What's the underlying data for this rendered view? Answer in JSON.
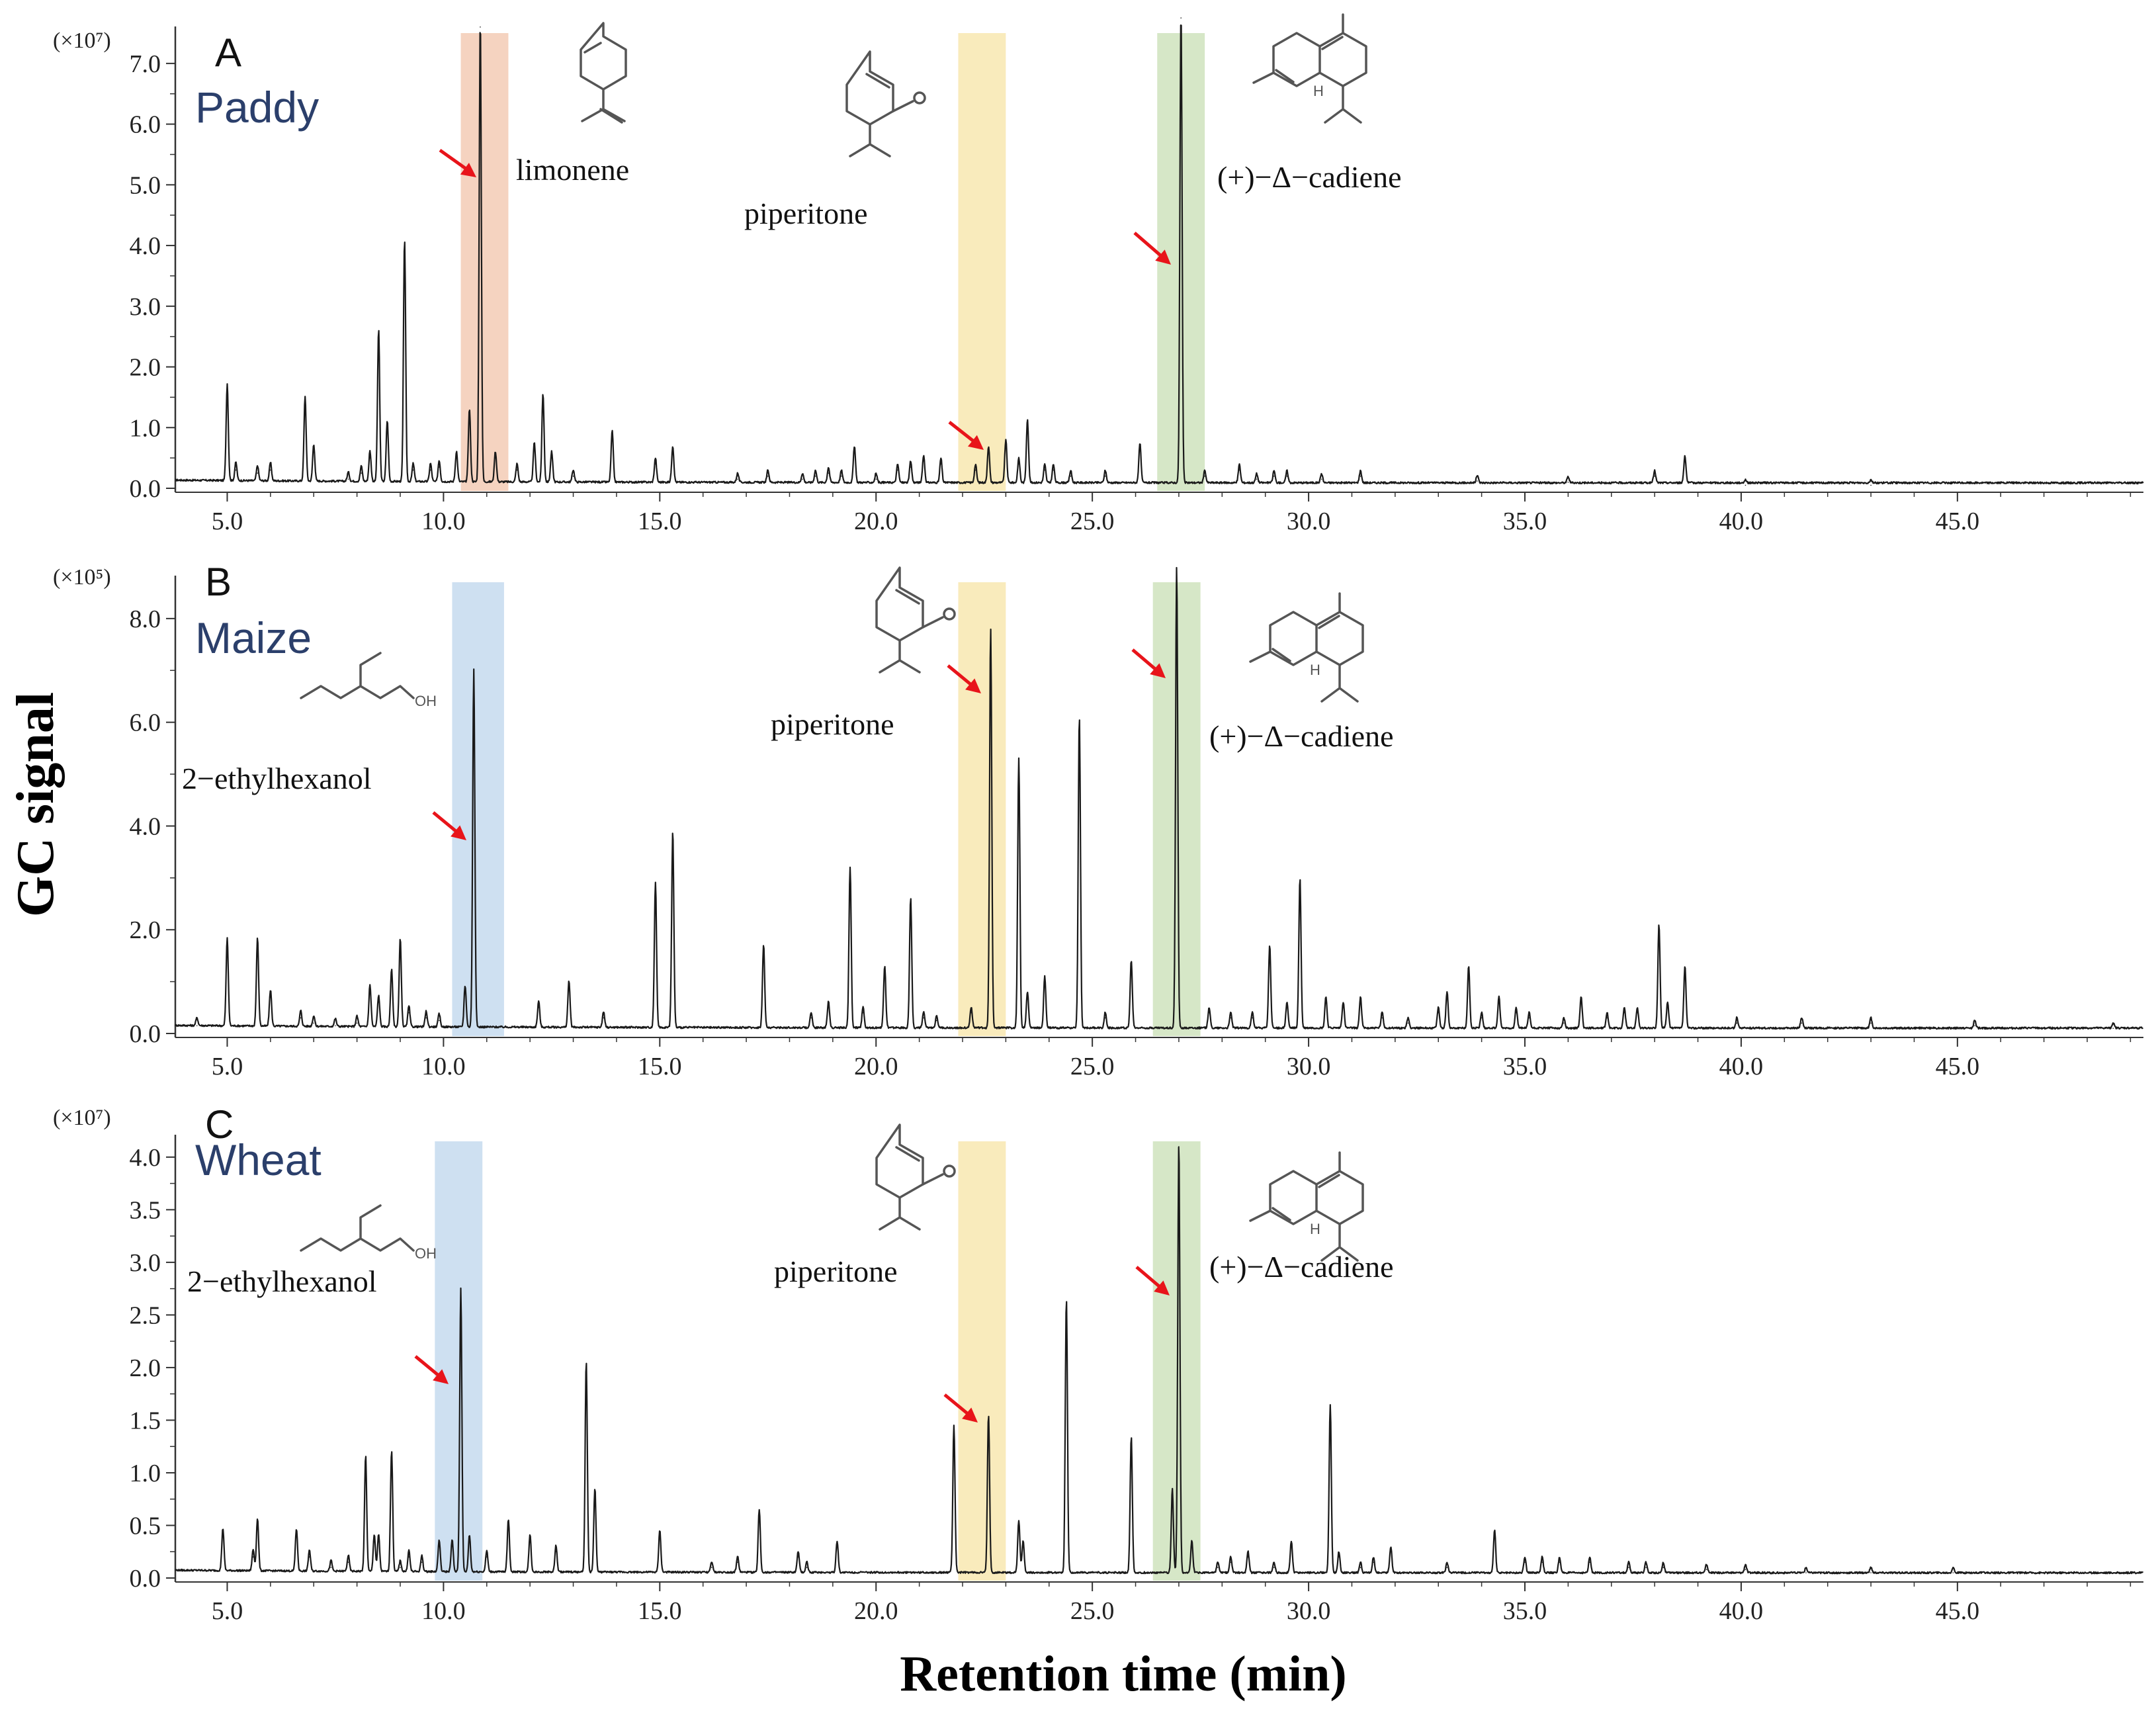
{
  "chart_data": {
    "type": "line",
    "xlabel": "Retention time (min)",
    "ylabel": "GC signal",
    "xlim": [
      3.8,
      49.3
    ],
    "x_ticks": [
      "5.0",
      "10.0",
      "15.0",
      "20.0",
      "25.0",
      "30.0",
      "35.0",
      "40.0",
      "45.0"
    ],
    "panels": [
      {
        "id": "A",
        "letter": "A",
        "crop": "Paddy",
        "multiplier": "(×10⁷)",
        "ylim": [
          0,
          7.5
        ],
        "y_ticks": [
          "0.0",
          "1.0",
          "2.0",
          "3.0",
          "4.0",
          "5.0",
          "6.0",
          "7.0"
        ],
        "highlights": [
          {
            "x0": 10.4,
            "x1": 11.5,
            "color": "#f3cbb5",
            "compound": "limonene"
          },
          {
            "x0": 21.9,
            "x1": 23.0,
            "color": "#f8e7b0",
            "compound": "piperitone"
          },
          {
            "x0": 26.5,
            "x1": 27.6,
            "color": "#cfe3bd",
            "compound": "(+)−Δ−cadiene"
          }
        ],
        "labels": [
          {
            "text": "limonene"
          },
          {
            "text": "piperitone"
          },
          {
            "text": "(+)−Δ−cadiene"
          }
        ],
        "peaks": [
          [
            5.0,
            1.6
          ],
          [
            5.2,
            0.3
          ],
          [
            5.7,
            0.25
          ],
          [
            6.0,
            0.3
          ],
          [
            6.8,
            1.4
          ],
          [
            7.0,
            0.6
          ],
          [
            7.8,
            0.15
          ],
          [
            8.1,
            0.25
          ],
          [
            8.3,
            0.5
          ],
          [
            8.5,
            2.5
          ],
          [
            8.7,
            1.0
          ],
          [
            9.1,
            4.0
          ],
          [
            9.3,
            0.3
          ],
          [
            9.7,
            0.3
          ],
          [
            9.9,
            0.35
          ],
          [
            10.3,
            0.5
          ],
          [
            10.6,
            1.2
          ],
          [
            10.85,
            7.6
          ],
          [
            11.2,
            0.5
          ],
          [
            11.7,
            0.3
          ],
          [
            12.1,
            0.65
          ],
          [
            12.3,
            1.45
          ],
          [
            12.5,
            0.5
          ],
          [
            13.0,
            0.2
          ],
          [
            13.9,
            0.85
          ],
          [
            14.9,
            0.4
          ],
          [
            15.3,
            0.6
          ],
          [
            16.8,
            0.15
          ],
          [
            17.5,
            0.2
          ],
          [
            18.3,
            0.15
          ],
          [
            18.6,
            0.2
          ],
          [
            18.9,
            0.25
          ],
          [
            19.2,
            0.2
          ],
          [
            19.5,
            0.6
          ],
          [
            20.0,
            0.15
          ],
          [
            20.5,
            0.3
          ],
          [
            20.8,
            0.35
          ],
          [
            21.1,
            0.45
          ],
          [
            21.5,
            0.4
          ],
          [
            22.3,
            0.3
          ],
          [
            22.6,
            0.6
          ],
          [
            23.0,
            0.7
          ],
          [
            23.3,
            0.4
          ],
          [
            23.5,
            1.05
          ],
          [
            23.9,
            0.3
          ],
          [
            24.1,
            0.3
          ],
          [
            24.5,
            0.2
          ],
          [
            25.3,
            0.2
          ],
          [
            26.1,
            0.65
          ],
          [
            27.05,
            7.75
          ],
          [
            27.6,
            0.2
          ],
          [
            28.4,
            0.3
          ],
          [
            28.8,
            0.15
          ],
          [
            29.2,
            0.2
          ],
          [
            29.5,
            0.2
          ],
          [
            30.3,
            0.15
          ],
          [
            31.2,
            0.2
          ],
          [
            33.9,
            0.12
          ],
          [
            36.0,
            0.1
          ],
          [
            38.0,
            0.2
          ],
          [
            38.7,
            0.45
          ],
          [
            40.1,
            0.05
          ],
          [
            43.0,
            0.05
          ]
        ]
      },
      {
        "id": "B",
        "letter": "B",
        "crop": "Maize",
        "multiplier": "(×10⁵)",
        "ylim": [
          0,
          8.7
        ],
        "y_ticks": [
          "0.0",
          "2.0",
          "4.0",
          "6.0",
          "8.0"
        ],
        "highlights": [
          {
            "x0": 10.2,
            "x1": 11.4,
            "color": "#c6dbef",
            "compound": "2−ethylhexanol"
          },
          {
            "x0": 21.9,
            "x1": 23.0,
            "color": "#f8e7b0",
            "compound": "piperitone"
          },
          {
            "x0": 26.4,
            "x1": 27.5,
            "color": "#cfe3bd",
            "compound": "(+)−Δ−cadiene"
          }
        ],
        "labels": [
          {
            "text": "2−ethylhexanol"
          },
          {
            "text": "piperitone"
          },
          {
            "text": "(+)−Δ−cadiene"
          }
        ],
        "peaks": [
          [
            4.3,
            0.15
          ],
          [
            5.0,
            1.7
          ],
          [
            5.7,
            1.7
          ],
          [
            6.0,
            0.7
          ],
          [
            6.7,
            0.3
          ],
          [
            7.0,
            0.2
          ],
          [
            7.5,
            0.15
          ],
          [
            8.0,
            0.2
          ],
          [
            8.3,
            0.8
          ],
          [
            8.5,
            0.6
          ],
          [
            8.8,
            1.1
          ],
          [
            9.0,
            1.7
          ],
          [
            9.2,
            0.4
          ],
          [
            9.6,
            0.3
          ],
          [
            9.9,
            0.25
          ],
          [
            10.5,
            0.8
          ],
          [
            10.7,
            6.9
          ],
          [
            12.2,
            0.5
          ],
          [
            12.9,
            0.9
          ],
          [
            13.7,
            0.3
          ],
          [
            14.9,
            2.8
          ],
          [
            15.3,
            3.8
          ],
          [
            17.4,
            1.6
          ],
          [
            18.5,
            0.3
          ],
          [
            18.9,
            0.5
          ],
          [
            19.4,
            3.1
          ],
          [
            19.7,
            0.4
          ],
          [
            20.2,
            1.2
          ],
          [
            20.8,
            2.5
          ],
          [
            21.1,
            0.3
          ],
          [
            21.4,
            0.25
          ],
          [
            22.2,
            0.4
          ],
          [
            22.65,
            7.7
          ],
          [
            23.3,
            5.2
          ],
          [
            23.5,
            0.7
          ],
          [
            23.9,
            1.0
          ],
          [
            24.7,
            6.0
          ],
          [
            25.3,
            0.3
          ],
          [
            25.9,
            1.3
          ],
          [
            26.95,
            8.9
          ],
          [
            27.7,
            0.4
          ],
          [
            28.2,
            0.3
          ],
          [
            28.7,
            0.3
          ],
          [
            29.1,
            1.6
          ],
          [
            29.5,
            0.5
          ],
          [
            29.8,
            2.9
          ],
          [
            30.4,
            0.6
          ],
          [
            30.8,
            0.5
          ],
          [
            31.2,
            0.6
          ],
          [
            31.7,
            0.3
          ],
          [
            32.3,
            0.2
          ],
          [
            33.0,
            0.4
          ],
          [
            33.2,
            0.7
          ],
          [
            33.7,
            1.2
          ],
          [
            34.0,
            0.3
          ],
          [
            34.4,
            0.6
          ],
          [
            34.8,
            0.4
          ],
          [
            35.1,
            0.3
          ],
          [
            35.9,
            0.2
          ],
          [
            36.3,
            0.6
          ],
          [
            36.9,
            0.3
          ],
          [
            37.3,
            0.4
          ],
          [
            37.6,
            0.4
          ],
          [
            38.1,
            2.0
          ],
          [
            38.3,
            0.5
          ],
          [
            38.7,
            1.2
          ],
          [
            39.9,
            0.2
          ],
          [
            41.4,
            0.2
          ],
          [
            43.0,
            0.2
          ],
          [
            45.4,
            0.15
          ],
          [
            48.6,
            0.1
          ]
        ]
      },
      {
        "id": "C",
        "letter": "C",
        "crop": "Wheat",
        "multiplier": "(×10⁷)",
        "ylim": [
          0,
          4.15
        ],
        "y_ticks": [
          "0.0",
          "0.5",
          "1.0",
          "1.5",
          "2.0",
          "2.5",
          "3.0",
          "3.5",
          "4.0"
        ],
        "highlights": [
          {
            "x0": 9.8,
            "x1": 10.9,
            "color": "#c6dbef",
            "compound": "2−ethylhexanol"
          },
          {
            "x0": 21.9,
            "x1": 23.0,
            "color": "#f8e7b0",
            "compound": "piperitone"
          },
          {
            "x0": 26.4,
            "x1": 27.5,
            "color": "#cfe3bd",
            "compound": "(+)−Δ−cadiene"
          }
        ],
        "labels": [
          {
            "text": "2−ethylhexanol"
          },
          {
            "text": "piperitone"
          },
          {
            "text": "(+)−Δ−cadiene"
          }
        ],
        "peaks": [
          [
            4.9,
            0.4
          ],
          [
            5.6,
            0.2
          ],
          [
            5.7,
            0.5
          ],
          [
            6.6,
            0.4
          ],
          [
            6.9,
            0.2
          ],
          [
            7.4,
            0.1
          ],
          [
            7.8,
            0.15
          ],
          [
            8.2,
            1.1
          ],
          [
            8.4,
            0.35
          ],
          [
            8.5,
            0.35
          ],
          [
            8.8,
            1.15
          ],
          [
            9.0,
            0.1
          ],
          [
            9.2,
            0.2
          ],
          [
            9.5,
            0.15
          ],
          [
            9.9,
            0.3
          ],
          [
            10.2,
            0.3
          ],
          [
            10.4,
            2.7
          ],
          [
            10.6,
            0.35
          ],
          [
            11.0,
            0.2
          ],
          [
            11.5,
            0.5
          ],
          [
            12.0,
            0.35
          ],
          [
            12.6,
            0.25
          ],
          [
            13.3,
            2.0
          ],
          [
            13.5,
            0.8
          ],
          [
            15.0,
            0.4
          ],
          [
            16.2,
            0.1
          ],
          [
            16.8,
            0.15
          ],
          [
            17.3,
            0.6
          ],
          [
            18.2,
            0.2
          ],
          [
            18.4,
            0.1
          ],
          [
            19.1,
            0.3
          ],
          [
            21.8,
            1.4
          ],
          [
            22.6,
            1.5
          ],
          [
            23.3,
            0.5
          ],
          [
            23.4,
            0.3
          ],
          [
            24.4,
            2.6
          ],
          [
            25.9,
            1.3
          ],
          [
            26.85,
            0.8
          ],
          [
            27.0,
            4.1
          ],
          [
            27.3,
            0.3
          ],
          [
            27.9,
            0.1
          ],
          [
            28.2,
            0.15
          ],
          [
            28.6,
            0.2
          ],
          [
            29.2,
            0.1
          ],
          [
            29.6,
            0.3
          ],
          [
            30.5,
            1.6
          ],
          [
            30.7,
            0.2
          ],
          [
            31.2,
            0.1
          ],
          [
            31.5,
            0.15
          ],
          [
            31.9,
            0.25
          ],
          [
            33.2,
            0.1
          ],
          [
            34.3,
            0.4
          ],
          [
            35.0,
            0.15
          ],
          [
            35.4,
            0.15
          ],
          [
            35.8,
            0.15
          ],
          [
            36.5,
            0.15
          ],
          [
            37.4,
            0.1
          ],
          [
            37.8,
            0.1
          ],
          [
            38.2,
            0.1
          ],
          [
            39.2,
            0.08
          ],
          [
            40.1,
            0.08
          ],
          [
            41.5,
            0.05
          ],
          [
            43.0,
            0.05
          ],
          [
            44.9,
            0.05
          ]
        ]
      }
    ]
  }
}
